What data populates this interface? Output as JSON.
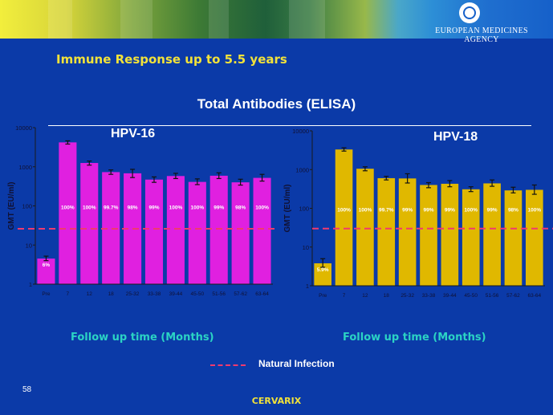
{
  "header": {
    "agency_name": "EUROPEAN MEDICINES AGENCY"
  },
  "slide": {
    "title": "Immune Response up to 5.5 years",
    "chart_title": "Total Antibodies (ELISA)",
    "number": "58",
    "footer": "CERVARIX"
  },
  "legend": {
    "label": "Natural Infection",
    "color": "#f03a6e"
  },
  "chart_data": [
    {
      "type": "bar",
      "title": "HPV-16",
      "xlabel": "Follow up time (Months)",
      "ylabel": "GMT (EU/ml)",
      "yscale": "log",
      "ylim": [
        1,
        10000
      ],
      "yticks": [
        "1",
        "10",
        "100",
        "1000",
        "10000"
      ],
      "bar_color": "#e020e0",
      "categories": [
        "Pre",
        "7",
        "12",
        "18",
        "25-32",
        "33-38",
        "39-44",
        "45-50",
        "51-56",
        "57-62",
        "63-64"
      ],
      "values": [
        4.5,
        4200,
        1250,
        730,
        680,
        470,
        580,
        410,
        590,
        400,
        520
      ],
      "error_low": [
        4.0,
        3800,
        1100,
        640,
        530,
        400,
        500,
        350,
        500,
        340,
        430
      ],
      "error_high": [
        5.2,
        4600,
        1400,
        830,
        860,
        550,
        680,
        490,
        700,
        480,
        640
      ],
      "data_labels": [
        "6%",
        "100%",
        "100%",
        "99.7%",
        "98%",
        "99%",
        "100%",
        "100%",
        "99%",
        "98%",
        "100%"
      ],
      "reference_line": {
        "value": 26,
        "style": "dashed",
        "color": "#f03a6e"
      },
      "grid": false
    },
    {
      "type": "bar",
      "title": "HPV-18",
      "xlabel": "Follow up time (Months)",
      "ylabel": "GMT (EU/ml)",
      "yscale": "log",
      "ylim": [
        1,
        10000
      ],
      "yticks": [
        "1",
        "10",
        "100",
        "1000",
        "10000"
      ],
      "bar_color": "#e0b800",
      "categories": [
        "Pre",
        "7",
        "12",
        "18",
        "25-32",
        "33-38",
        "39-44",
        "45-50",
        "51-56",
        "57-62",
        "63-64"
      ],
      "values": [
        3.8,
        3300,
        1050,
        600,
        590,
        400,
        430,
        310,
        440,
        290,
        300
      ],
      "error_low": [
        3.0,
        3000,
        930,
        540,
        450,
        340,
        360,
        270,
        370,
        250,
        230
      ],
      "error_high": [
        5.0,
        3650,
        1180,
        670,
        780,
        460,
        520,
        360,
        540,
        350,
        400
      ],
      "data_labels": [
        "5.9%",
        "100%",
        "100%",
        "99.7%",
        "99%",
        "99%",
        "99%",
        "100%",
        "99%",
        "98%",
        "100%"
      ],
      "reference_line": {
        "value": 30,
        "style": "dashed",
        "color": "#f03a6e"
      },
      "grid": false
    }
  ]
}
